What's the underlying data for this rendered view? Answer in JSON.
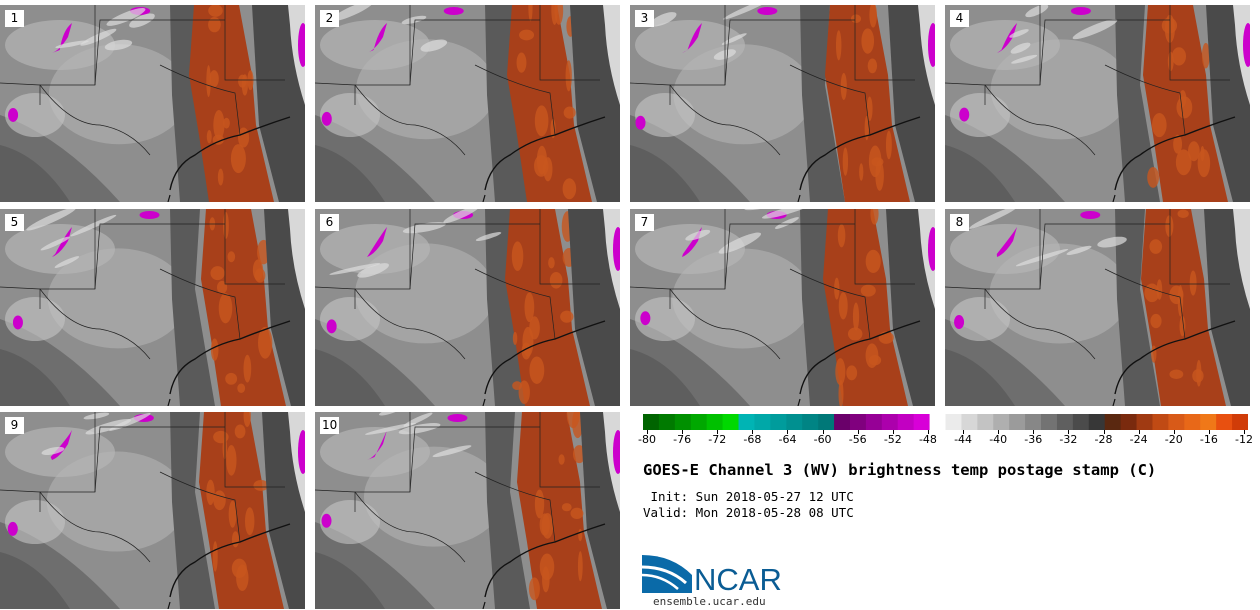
{
  "panels": [
    {
      "label": "1"
    },
    {
      "label": "2"
    },
    {
      "label": "3"
    },
    {
      "label": "4"
    },
    {
      "label": "5"
    },
    {
      "label": "6"
    },
    {
      "label": "7"
    },
    {
      "label": "8"
    },
    {
      "label": "9"
    },
    {
      "label": "10"
    }
  ],
  "colorbar": {
    "tick_labels": [
      "-80",
      "-76",
      "-72",
      "-68",
      "-64",
      "-60",
      "-56",
      "-52",
      "-48",
      "-44",
      "-40",
      "-36",
      "-32",
      "-28",
      "-24",
      "-20",
      "-16",
      "-12"
    ],
    "colors": [
      "#006400",
      "#007a00",
      "#009000",
      "#00a800",
      "#00c000",
      "#00d800",
      "#00b4b4",
      "#00a8a8",
      "#009c9c",
      "#009090",
      "#008484",
      "#007878",
      "#6a006a",
      "#80007e",
      "#960096",
      "#ac00ac",
      "#c200c2",
      "#d800d8",
      "#ffffff",
      "#ebebeb",
      "#d7d7d7",
      "#c3c3c3",
      "#afafaf",
      "#9b9b9b",
      "#878787",
      "#737373",
      "#5f5f5f",
      "#4b4b4b",
      "#373737",
      "#5a2810",
      "#7a2a0e",
      "#a03a12",
      "#c04a14",
      "#d85a18",
      "#e86818",
      "#f07818",
      "#e85010",
      "#d03c08"
    ]
  },
  "title": "GOES-E Channel 3 (WV) brightness temp postage stamp (C)",
  "init": " Init: Sun 2018-05-27 12 UTC",
  "valid": "Valid: Mon 2018-05-28 08 UTC",
  "logo": {
    "text": "NCAR",
    "url": "ensemble.ucar.edu"
  },
  "palette": {
    "dry": "#a8401a",
    "dry_light": "#c8561e",
    "moist": "#cc00cc",
    "dark": "#3a3a3a",
    "mid": "#8c8c8c",
    "light": "#b8b8b8"
  }
}
